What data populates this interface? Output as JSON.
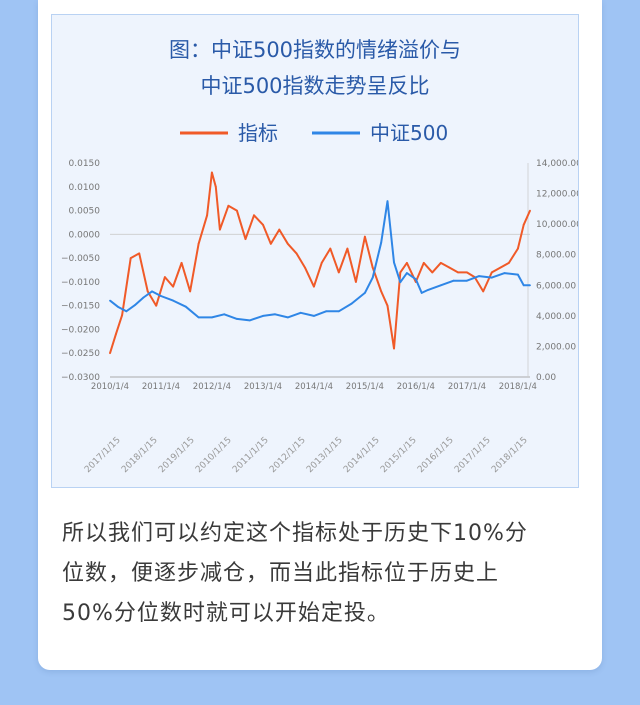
{
  "chart_data": {
    "type": "line",
    "title_lines": [
      "图：中证500指数的情绪溢价与",
      "中证500指数走势呈反比"
    ],
    "series": [
      {
        "name": "指标",
        "axis": "left",
        "color": "#f05a28",
        "x": [
          "2010/1/4",
          "2010/2/15",
          "2010/4/1",
          "2010/6/1",
          "2010/8/1",
          "2010/10/1",
          "2010/12/1",
          "2011/2/1",
          "2011/4/1",
          "2011/6/1",
          "2011/8/1",
          "2011/10/1",
          "2011/12/1",
          "2012/1/4",
          "2012/2/1",
          "2012/3/1",
          "2012/5/1",
          "2012/7/1",
          "2012/9/1",
          "2012/11/1",
          "2013/1/4",
          "2013/3/1",
          "2013/5/1",
          "2013/7/1",
          "2013/9/1",
          "2013/11/1",
          "2014/1/4",
          "2014/3/1",
          "2014/5/1",
          "2014/7/1",
          "2014/9/1",
          "2014/11/1",
          "2015/1/4",
          "2015/3/1",
          "2015/5/1",
          "2015/6/15",
          "2015/8/1",
          "2015/9/15",
          "2015/11/1",
          "2016/1/4",
          "2016/3/1",
          "2016/5/1",
          "2016/7/1",
          "2016/9/1",
          "2016/11/1",
          "2017/1/4",
          "2017/3/1",
          "2017/5/1",
          "2017/7/1",
          "2017/9/1",
          "2017/11/1",
          "2018/1/4",
          "2018/2/15",
          "2018/4/1"
        ],
        "values": [
          -0.025,
          -0.021,
          -0.017,
          -0.005,
          -0.004,
          -0.012,
          -0.015,
          -0.009,
          -0.011,
          -0.006,
          -0.012,
          -0.002,
          0.004,
          0.013,
          0.01,
          0.001,
          0.006,
          0.005,
          -0.001,
          0.004,
          0.002,
          -0.002,
          0.001,
          -0.002,
          -0.004,
          -0.007,
          -0.011,
          -0.006,
          -0.003,
          -0.008,
          -0.003,
          -0.01,
          -0.0005,
          -0.007,
          -0.012,
          -0.015,
          -0.024,
          -0.008,
          -0.006,
          -0.01,
          -0.006,
          -0.008,
          -0.006,
          -0.007,
          -0.008,
          -0.008,
          -0.009,
          -0.012,
          -0.008,
          -0.007,
          -0.006,
          -0.003,
          0.002,
          0.005
        ]
      },
      {
        "name": "中证500",
        "axis": "right",
        "color": "#2f86e6",
        "x": [
          "2010/1/4",
          "2010/3/1",
          "2010/5/1",
          "2010/7/1",
          "2010/9/1",
          "2010/11/1",
          "2011/1/4",
          "2011/4/1",
          "2011/7/1",
          "2011/10/1",
          "2012/1/4",
          "2012/4/1",
          "2012/7/1",
          "2012/10/1",
          "2013/1/4",
          "2013/4/1",
          "2013/7/1",
          "2013/10/1",
          "2014/1/4",
          "2014/4/1",
          "2014/7/1",
          "2014/10/1",
          "2015/1/4",
          "2015/3/1",
          "2015/5/1",
          "2015/6/15",
          "2015/8/1",
          "2015/9/15",
          "2015/11/1",
          "2016/1/4",
          "2016/2/15",
          "2016/4/1",
          "2016/7/1",
          "2016/10/1",
          "2017/1/4",
          "2017/4/1",
          "2017/7/1",
          "2017/10/1",
          "2018/1/4",
          "2018/2/15",
          "2018/4/1"
        ],
        "values": [
          5000,
          4600,
          4300,
          4700,
          5200,
          5600,
          5300,
          5000,
          4600,
          3900,
          3900,
          4100,
          3800,
          3700,
          4000,
          4100,
          3900,
          4200,
          4000,
          4300,
          4300,
          4800,
          5500,
          6500,
          8800,
          11500,
          7500,
          6200,
          6800,
          6400,
          5500,
          5700,
          6000,
          6300,
          6300,
          6600,
          6500,
          6800,
          6700,
          6000,
          6000
        ]
      }
    ],
    "y_left": {
      "min": -0.03,
      "max": 0.015,
      "ticks": [
        "0.0150",
        "0.0100",
        "0.0050",
        "0.0000",
        "−0.0050",
        "−0.0100",
        "−0.0150",
        "−0.0200",
        "−0.0250",
        "−0.0300"
      ]
    },
    "y_right": {
      "min": 0,
      "max": 14000,
      "ticks": [
        "14,000.00",
        "12,000.00",
        "10,000.00",
        "8,000.00",
        "6,000.00",
        "4,000.00",
        "2,000.00",
        "0.00"
      ]
    },
    "x_labels_top": [
      "2010/1/4",
      "2011/1/4",
      "2012/1/4",
      "2013/1/4",
      "2014/1/4",
      "2015/1/4",
      "2016/1/4",
      "2017/1/4",
      "2018/1/4"
    ],
    "x_labels_rotated": [
      "2017/1/15",
      "2018/1/15",
      "2019/1/15",
      "2010/1/15",
      "2011/1/15",
      "2012/1/15",
      "2013/1/15",
      "2014/1/15",
      "2015/1/15",
      "2016/1/15",
      "2017/1/15",
      "2018/1/15"
    ],
    "legend_position": "top-center",
    "grid": false
  },
  "caption": {
    "lines": [
      "所以我们可以约定这个指标处于历史下10%分",
      "位数，便逐步减仓，而当此指标位于历史上",
      "50%分位数时就可以开始定投。"
    ]
  }
}
